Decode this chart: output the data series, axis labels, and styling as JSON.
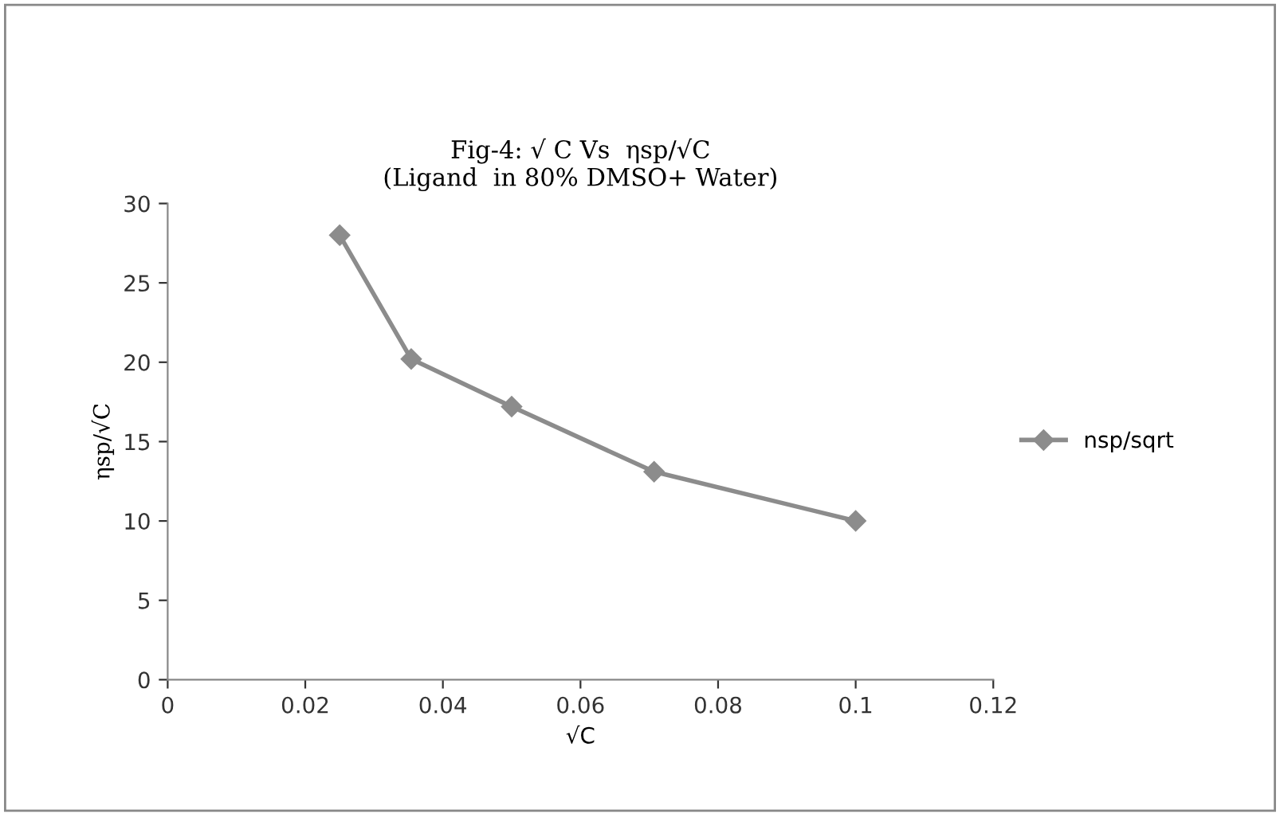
{
  "chart_data": {
    "type": "line",
    "title": "Fig-4: √ C Vs  ηsp/√C\n(Ligand  in 80% DMSO+ Water)",
    "xlabel": "√C",
    "ylabel": "ηsp/√C",
    "x": [
      0.025,
      0.0354,
      0.05,
      0.0707,
      0.1
    ],
    "series": [
      {
        "name": "nsp/sqrt",
        "color": "#8c8c8c",
        "values": [
          28.0,
          20.2,
          17.2,
          13.1,
          10.0
        ]
      }
    ],
    "xlim": [
      0,
      0.12
    ],
    "xticks": [
      0,
      0.02,
      0.04,
      0.06,
      0.08,
      0.1,
      0.12
    ],
    "ylim": [
      0,
      30
    ],
    "yticks": [
      0,
      5,
      10,
      15,
      20,
      25,
      30
    ],
    "grid": false,
    "legend": "right",
    "marker": "diamond",
    "line_style": "solid"
  }
}
